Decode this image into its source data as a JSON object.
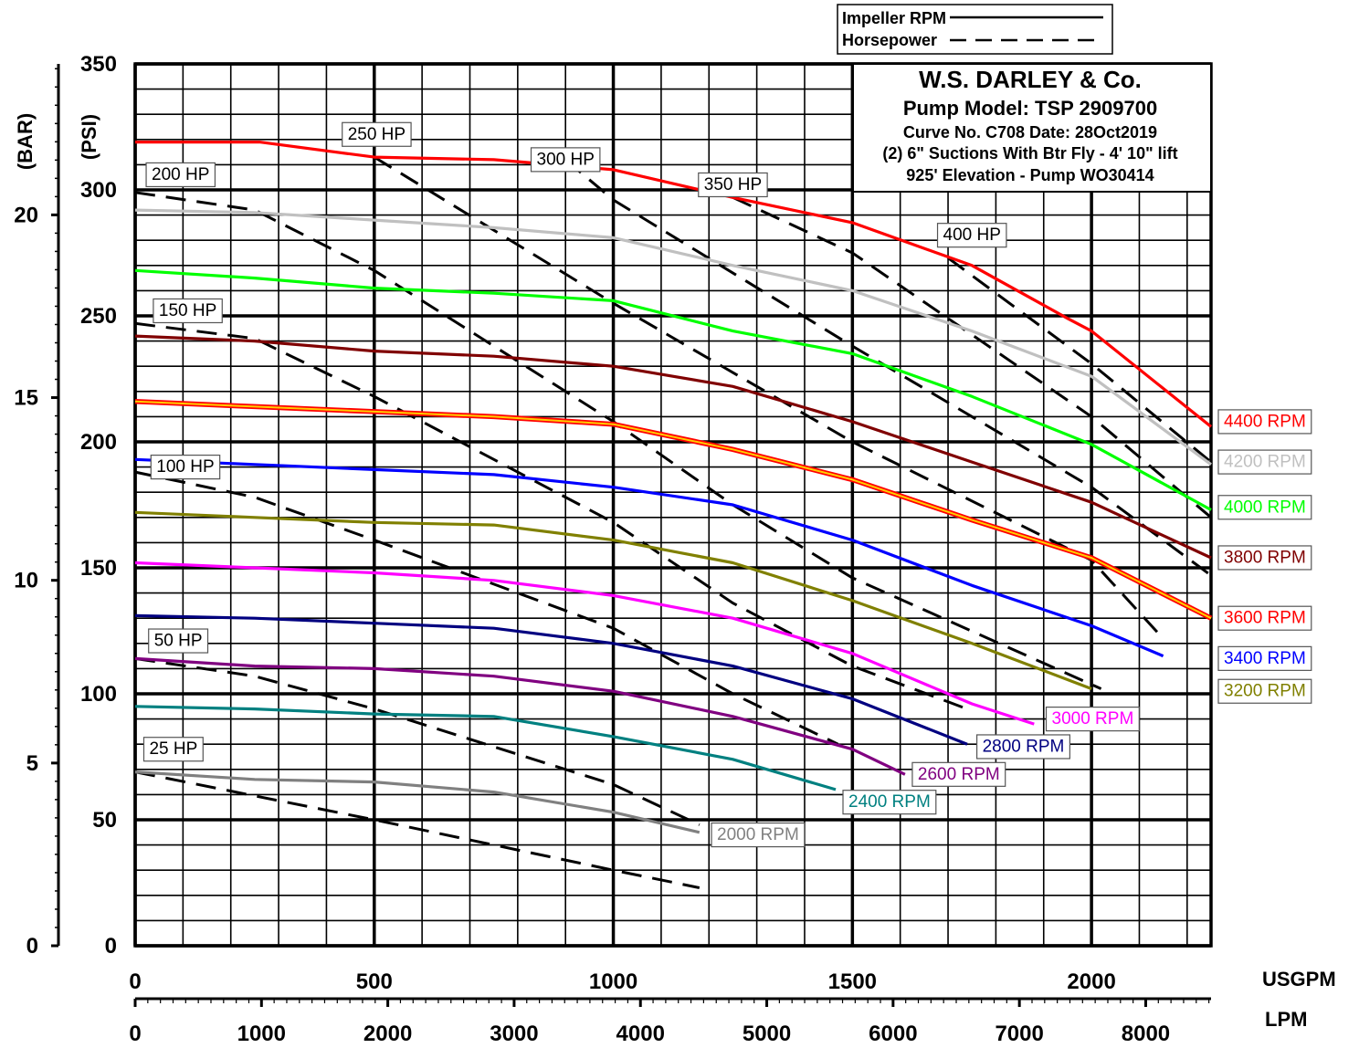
{
  "chart_data": {
    "type": "line",
    "x_unit_primary": "USGPM",
    "x_unit_secondary": "LPM",
    "y_unit_primary": "(PSI)",
    "y_unit_secondary": "(BAR)",
    "xlim": [
      0,
      2250
    ],
    "ylim": [
      0,
      350
    ],
    "x_ticks": [
      "0",
      "500",
      "1000",
      "1500",
      "2000"
    ],
    "x_tick_values": [
      0,
      500,
      1000,
      1500,
      2000
    ],
    "lpm_ticks": [
      "0",
      "1000",
      "2000",
      "3000",
      "4000",
      "5000",
      "6000",
      "7000",
      "8000"
    ],
    "lpm_tick_values": [
      0,
      1000,
      2000,
      3000,
      4000,
      5000,
      6000,
      7000,
      8000
    ],
    "y_ticks": [
      "0",
      "50",
      "100",
      "150",
      "200",
      "250",
      "300",
      "350"
    ],
    "y_tick_values": [
      0,
      50,
      100,
      150,
      200,
      250,
      300,
      350
    ],
    "bar_ticks": [
      "0",
      "5",
      "10",
      "15",
      "20"
    ],
    "bar_tick_values": [
      0,
      5,
      10,
      15,
      20
    ],
    "info_box": [
      "W.S. DARLEY & Co.",
      "Pump Model:  TSP 2909700",
      "Curve No. C708   Date: 28Oct2019",
      "(2) 6\" Suctions With Btr Fly - 4' 10\" lift",
      "925' Elevation - Pump WO30414"
    ],
    "legend": [
      {
        "label": "Impeller RPM",
        "style": "solid"
      },
      {
        "label": "Horsepower",
        "style": "dashed"
      }
    ],
    "rpm_series": [
      {
        "name": "4400 RPM",
        "color": "#ff0000",
        "label_at": [
          2250,
          208
        ],
        "points": [
          [
            0,
            319
          ],
          [
            260,
            319
          ],
          [
            500,
            313
          ],
          [
            750,
            312
          ],
          [
            1000,
            308
          ],
          [
            1250,
            297
          ],
          [
            1500,
            287
          ],
          [
            1750,
            270
          ],
          [
            1950,
            249
          ],
          [
            2000,
            244
          ],
          [
            2250,
            206
          ]
        ]
      },
      {
        "name": "4200 RPM",
        "color": "#c0c0c0",
        "label_at": [
          2250,
          192
        ],
        "points": [
          [
            0,
            292
          ],
          [
            250,
            291
          ],
          [
            500,
            288
          ],
          [
            750,
            285
          ],
          [
            1000,
            281
          ],
          [
            1250,
            270
          ],
          [
            1500,
            260
          ],
          [
            1750,
            244
          ],
          [
            2000,
            226
          ],
          [
            2250,
            191
          ]
        ]
      },
      {
        "name": "4000 RPM",
        "color": "#00ff00",
        "label_at": [
          2250,
          174
        ],
        "points": [
          [
            0,
            268
          ],
          [
            250,
            265
          ],
          [
            500,
            261
          ],
          [
            750,
            259
          ],
          [
            1000,
            256
          ],
          [
            1250,
            244
          ],
          [
            1500,
            235
          ],
          [
            1750,
            218
          ],
          [
            2000,
            199
          ],
          [
            2250,
            173
          ]
        ]
      },
      {
        "name": "3800 RPM",
        "color": "#800000",
        "label_at": [
          2250,
          154
        ],
        "points": [
          [
            0,
            242
          ],
          [
            250,
            240
          ],
          [
            500,
            236
          ],
          [
            750,
            234
          ],
          [
            1000,
            230
          ],
          [
            1250,
            222
          ],
          [
            1500,
            208
          ],
          [
            1750,
            192
          ],
          [
            2000,
            176
          ],
          [
            2250,
            154
          ]
        ]
      },
      {
        "name": "3600 RPM",
        "color": "#ffcc00",
        "edge": "#ff0000",
        "label_at": [
          2250,
          130
        ],
        "points": [
          [
            0,
            216
          ],
          [
            250,
            214
          ],
          [
            500,
            212
          ],
          [
            750,
            210
          ],
          [
            1000,
            207
          ],
          [
            1250,
            197
          ],
          [
            1500,
            185
          ],
          [
            1750,
            169
          ],
          [
            2000,
            154
          ],
          [
            2250,
            130
          ]
        ]
      },
      {
        "name": "3400 RPM",
        "color": "#0000ff",
        "label_at": [
          2250,
          114
        ],
        "points": [
          [
            0,
            193
          ],
          [
            250,
            191
          ],
          [
            500,
            189
          ],
          [
            750,
            187
          ],
          [
            1000,
            182
          ],
          [
            1250,
            175
          ],
          [
            1500,
            161
          ],
          [
            1750,
            143
          ],
          [
            2000,
            127
          ],
          [
            2150,
            115
          ]
        ]
      },
      {
        "name": "3200 RPM",
        "color": "#808000",
        "label_at": [
          2250,
          101
        ],
        "points": [
          [
            0,
            172
          ],
          [
            250,
            170
          ],
          [
            500,
            168
          ],
          [
            750,
            167
          ],
          [
            1000,
            161
          ],
          [
            1250,
            152
          ],
          [
            1500,
            137
          ],
          [
            1750,
            120
          ],
          [
            2000,
            102
          ]
        ]
      },
      {
        "name": "3000 RPM",
        "color": "#ff00ff",
        "label_at": [
          1890,
          90
        ],
        "points": [
          [
            0,
            152
          ],
          [
            250,
            150
          ],
          [
            500,
            148
          ],
          [
            750,
            145
          ],
          [
            1000,
            139
          ],
          [
            1250,
            130
          ],
          [
            1500,
            116
          ],
          [
            1750,
            96
          ],
          [
            1880,
            88
          ]
        ]
      },
      {
        "name": "2800 RPM",
        "color": "#000080",
        "label_at": [
          1745,
          79
        ],
        "points": [
          [
            0,
            131
          ],
          [
            250,
            130
          ],
          [
            500,
            128
          ],
          [
            750,
            126
          ],
          [
            1000,
            120
          ],
          [
            1250,
            111
          ],
          [
            1500,
            98
          ],
          [
            1740,
            80
          ]
        ]
      },
      {
        "name": "2600 RPM",
        "color": "#800080",
        "label_at": [
          1610,
          68
        ],
        "points": [
          [
            0,
            114
          ],
          [
            250,
            111
          ],
          [
            500,
            110
          ],
          [
            750,
            107
          ],
          [
            1000,
            101
          ],
          [
            1250,
            91
          ],
          [
            1500,
            78
          ],
          [
            1610,
            68
          ]
        ]
      },
      {
        "name": "2400 RPM",
        "color": "#008080",
        "label_at": [
          1465,
          57
        ],
        "points": [
          [
            0,
            95
          ],
          [
            250,
            94
          ],
          [
            500,
            92
          ],
          [
            750,
            91
          ],
          [
            1000,
            83
          ],
          [
            1250,
            74
          ],
          [
            1465,
            62
          ]
        ]
      },
      {
        "name": "2000 RPM",
        "color": "#808080",
        "label_at": [
          1190,
          44
        ],
        "points": [
          [
            0,
            69
          ],
          [
            250,
            66
          ],
          [
            500,
            65
          ],
          [
            750,
            61
          ],
          [
            1000,
            53
          ],
          [
            1180,
            45
          ]
        ]
      }
    ],
    "hp_lines": [
      {
        "name": "25 HP",
        "label_at": [
          80,
          78
        ],
        "points": [
          [
            0,
            69
          ],
          [
            500,
            50
          ],
          [
            1000,
            30
          ],
          [
            1180,
            23
          ]
        ]
      },
      {
        "name": "50 HP",
        "label_at": [
          90,
          121
        ],
        "points": [
          [
            0,
            114
          ],
          [
            250,
            107
          ],
          [
            500,
            94
          ],
          [
            1000,
            64
          ],
          [
            1180,
            48
          ]
        ]
      },
      {
        "name": "100 HP",
        "label_at": [
          105,
          190
        ],
        "points": [
          [
            0,
            188
          ],
          [
            250,
            178
          ],
          [
            500,
            161
          ],
          [
            1000,
            126
          ],
          [
            1250,
            100
          ],
          [
            1470,
            80
          ]
        ]
      },
      {
        "name": "150 HP",
        "label_at": [
          110,
          252
        ],
        "points": [
          [
            0,
            247
          ],
          [
            250,
            241
          ],
          [
            500,
            218
          ],
          [
            1000,
            168
          ],
          [
            1250,
            136
          ],
          [
            1500,
            111
          ],
          [
            1740,
            94
          ]
        ]
      },
      {
        "name": "200 HP",
        "label_at": [
          95,
          306
        ],
        "points": [
          [
            0,
            299
          ],
          [
            250,
            292
          ],
          [
            500,
            268
          ],
          [
            1000,
            208
          ],
          [
            1250,
            175
          ],
          [
            1500,
            146
          ],
          [
            2020,
            102
          ]
        ]
      },
      {
        "name": "250 HP",
        "label_at": [
          505,
          322
        ],
        "points": [
          [
            500,
            313
          ],
          [
            1000,
            255
          ],
          [
            1500,
            200
          ],
          [
            2000,
            153
          ],
          [
            2140,
            124
          ]
        ]
      },
      {
        "name": "300 HP",
        "label_at": [
          900,
          312
        ],
        "points": [
          [
            900,
            312
          ],
          [
            1000,
            296
          ],
          [
            1500,
            238
          ],
          [
            2000,
            182
          ],
          [
            2250,
            147
          ]
        ]
      },
      {
        "name": "350 HP",
        "label_at": [
          1250,
          302
        ],
        "points": [
          [
            1250,
            297
          ],
          [
            1500,
            275
          ],
          [
            2000,
            210
          ],
          [
            2250,
            170
          ]
        ]
      },
      {
        "name": "400 HP",
        "label_at": [
          1750,
          282
        ],
        "points": [
          [
            1700,
            273
          ],
          [
            2000,
            231
          ],
          [
            2250,
            192
          ]
        ]
      }
    ]
  }
}
